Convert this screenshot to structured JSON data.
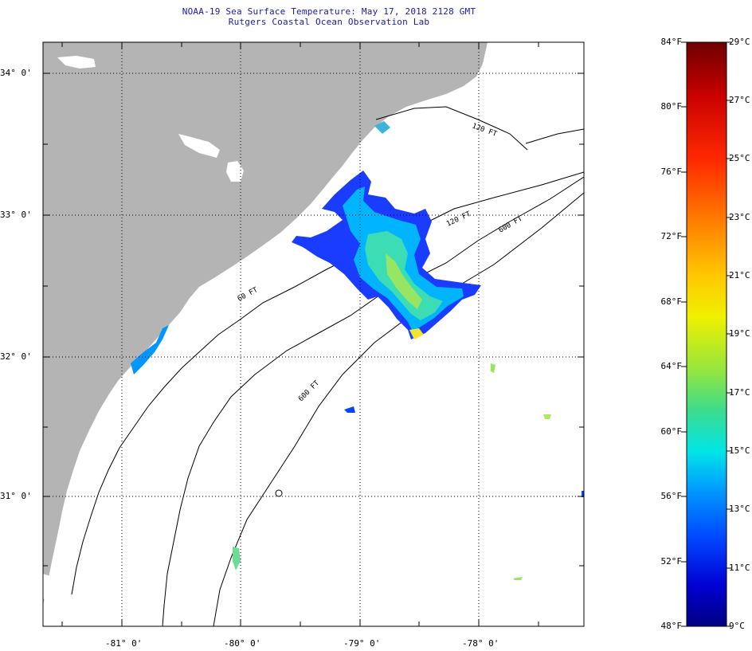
{
  "header": {
    "title": "NOAA-19 Sea Surface Temperature:  May 17, 2018 2128 GMT",
    "subtitle": "Rutgers Coastal Ocean Observation Lab"
  },
  "map": {
    "lat_labels": [
      "34° 0'",
      "33° 0'",
      "32° 0'",
      "31° 0'"
    ],
    "lon_labels": [
      "-81° 0'",
      "-80° 0'",
      "-79° 0'",
      "-78° 0'"
    ],
    "isobath_labels": [
      "120 FT",
      "600 FT",
      "600 FT",
      "120 FT",
      "60 FT"
    ],
    "land_color": "#b4b4b4",
    "ocean_color": "#ffffff"
  },
  "colorbar": {
    "fahrenheit": [
      "84°F",
      "80°F",
      "76°F",
      "72°F",
      "68°F",
      "64°F",
      "60°F",
      "56°F",
      "52°F",
      "48°F"
    ],
    "celsius": [
      "29°C",
      "27°C",
      "25°C",
      "23°C",
      "21°C",
      "19°C",
      "17°C",
      "15°C",
      "13°C",
      "11°C",
      "9°C"
    ],
    "colors": [
      "#6e0000",
      "#c80000",
      "#ff2800",
      "#ff7800",
      "#ffc800",
      "#f0f000",
      "#96e63c",
      "#3cdc8c",
      "#00e6e6",
      "#0096ff",
      "#0046ff",
      "#0000d2",
      "#000082"
    ]
  }
}
